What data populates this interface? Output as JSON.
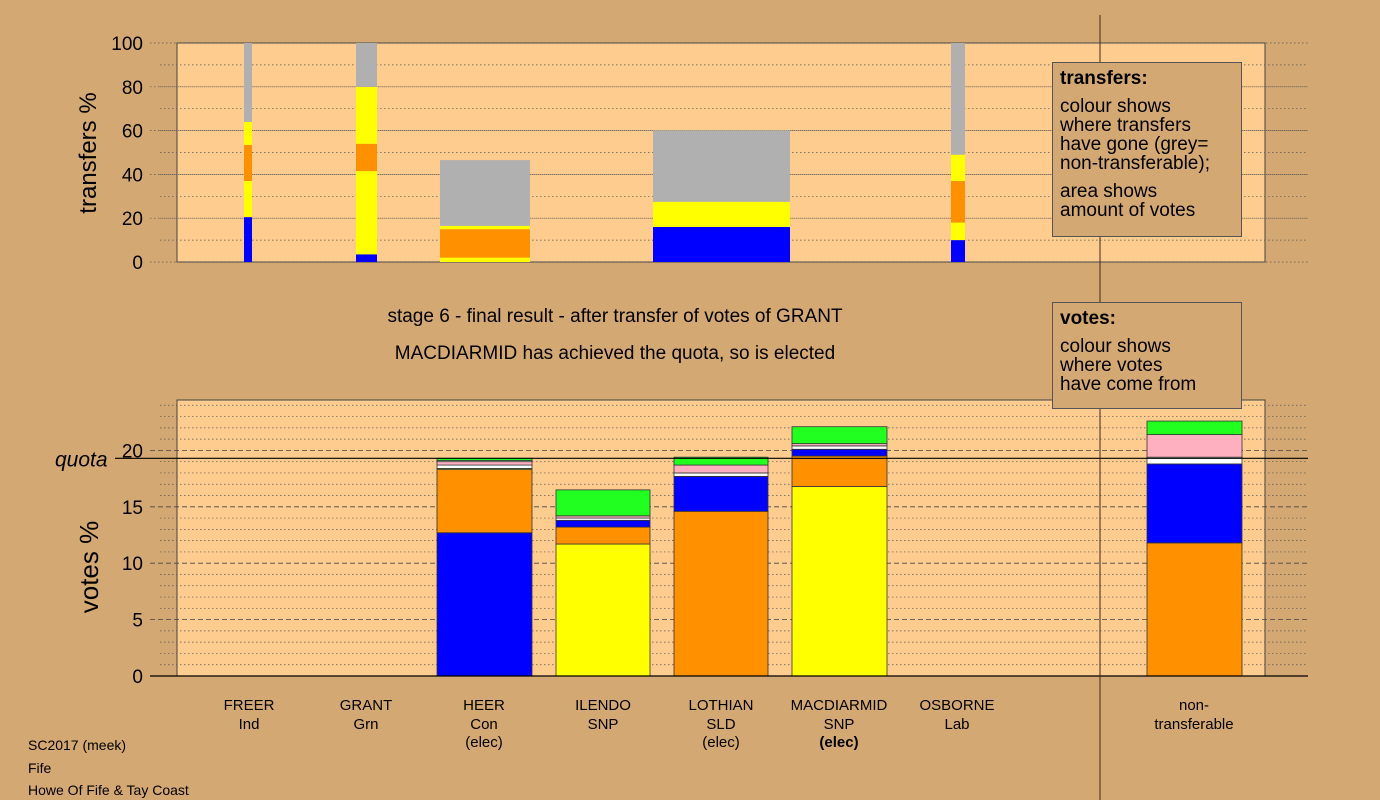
{
  "chart_data": [
    {
      "type": "bar",
      "stacked": true,
      "ylabel": "transfers %",
      "ylim": [
        0,
        100
      ],
      "yticks": [
        0,
        20,
        40,
        60,
        80,
        100
      ],
      "bars": [
        {
          "candidate": "FREER",
          "width": "thin",
          "segments": [
            {
              "color": "#0000ff",
              "value": 20.5
            },
            {
              "color": "#ffff00",
              "value": 16.5
            },
            {
              "color": "#ff9000",
              "value": 16.5
            },
            {
              "color": "#ffff00",
              "value": 10.5
            },
            {
              "color": "#b0b0b0",
              "value": 36
            }
          ]
        },
        {
          "candidate": "GRANT",
          "width": "narrow",
          "segments": [
            {
              "color": "#0000ff",
              "value": 3.5
            },
            {
              "color": "#ffff00",
              "value": 38
            },
            {
              "color": "#ff9000",
              "value": 12.5
            },
            {
              "color": "#ffff00",
              "value": 26
            },
            {
              "color": "#b0b0b0",
              "value": 20
            }
          ]
        },
        {
          "candidate": "HEER",
          "width": "wide",
          "segments": [
            {
              "color": "#ffff00",
              "value": 2
            },
            {
              "color": "#ff9000",
              "value": 13
            },
            {
              "color": "#ffff00",
              "value": 1.5
            },
            {
              "color": "#b0b0b0",
              "value": 30
            }
          ]
        },
        {
          "candidate": "LOTHIAN",
          "width": "wider",
          "segments": [
            {
              "color": "#0000ff",
              "value": 16
            },
            {
              "color": "#ffff00",
              "value": 11.5
            },
            {
              "color": "#b0b0b0",
              "value": 32.5
            }
          ]
        },
        {
          "candidate": "OSBORNE",
          "width": "thin",
          "segments": [
            {
              "color": "#0000ff",
              "value": 10
            },
            {
              "color": "#ffff00",
              "value": 8
            },
            {
              "color": "#ff9000",
              "value": 19
            },
            {
              "color": "#ffff00",
              "value": 12
            },
            {
              "color": "#b0b0b0",
              "value": 51
            }
          ]
        }
      ]
    },
    {
      "type": "bar",
      "stacked": true,
      "ylabel": "votes %",
      "ylim": [
        0,
        25
      ],
      "yticks": [
        0,
        5,
        10,
        15,
        20
      ],
      "quota": 19.3,
      "quota_label": "quota",
      "candidates": [
        {
          "name": "FREER",
          "party": "Ind",
          "status": "",
          "segments": []
        },
        {
          "name": "GRANT",
          "party": "Grn",
          "status": "",
          "segments": []
        },
        {
          "name": "HEER",
          "party": "Con",
          "status": "(elec)",
          "segments": [
            {
              "color": "#0000ff",
              "value": 12.7
            },
            {
              "color": "#ff9000",
              "value": 5.6
            },
            {
              "color": "#ffff00",
              "value": 0.1
            },
            {
              "color": "#ffffff",
              "value": 0.3
            },
            {
              "color": "#ffb0c0",
              "value": 0.3
            },
            {
              "color": "#ffffff",
              "value": 0.1
            },
            {
              "color": "#20ff20",
              "value": 0.2
            }
          ]
        },
        {
          "name": "ILENDO",
          "party": "SNP",
          "status": "",
          "segments": [
            {
              "color": "#ffff00",
              "value": 11.7
            },
            {
              "color": "#ff9000",
              "value": 1.5
            },
            {
              "color": "#0000ff",
              "value": 0.6
            },
            {
              "color": "#ffffff",
              "value": 0.2
            },
            {
              "color": "#ffb0c0",
              "value": 0.2
            },
            {
              "color": "#20ff20",
              "value": 2.3
            }
          ]
        },
        {
          "name": "LOTHIAN",
          "party": "SLD",
          "status": "(elec)",
          "segments": [
            {
              "color": "#ff9000",
              "value": 14.6
            },
            {
              "color": "#0000ff",
              "value": 3.1
            },
            {
              "color": "#ffffff",
              "value": 0.3
            },
            {
              "color": "#ffb0c0",
              "value": 0.7
            },
            {
              "color": "#20ff20",
              "value": 0.7
            }
          ]
        },
        {
          "name": "MACDIARMID",
          "party": "SNP",
          "status": "(elec)",
          "status_bold": true,
          "segments": [
            {
              "color": "#ffff00",
              "value": 16.8
            },
            {
              "color": "#ff9000",
              "value": 2.7
            },
            {
              "color": "#0000ff",
              "value": 0.6
            },
            {
              "color": "#ffffff",
              "value": 0.3
            },
            {
              "color": "#ffb0c0",
              "value": 0.2
            },
            {
              "color": "#20ff20",
              "value": 1.5
            }
          ]
        },
        {
          "name": "OSBORNE",
          "party": "Lab",
          "status": "",
          "segments": []
        },
        {
          "name": "non-",
          "party": "transferable",
          "status": "",
          "segments": [
            {
              "color": "#ff9000",
              "value": 11.8
            },
            {
              "color": "#0000ff",
              "value": 7.0
            },
            {
              "color": "#ffffff",
              "value": 0.6
            },
            {
              "color": "#ffb0c0",
              "value": 2.0
            },
            {
              "color": "#20ff20",
              "value": 1.2
            }
          ]
        }
      ]
    }
  ],
  "captions": {
    "stage": "stage 6 - final result - after transfer of votes of GRANT",
    "result": "MACDIARMID has achieved the quota, so is elected"
  },
  "legend_transfers": {
    "title": "transfers:",
    "lines1": [
      "colour shows",
      "where transfers",
      "have gone (grey=",
      "non-transferable);"
    ],
    "lines2": [
      "area shows",
      "amount of votes"
    ]
  },
  "legend_votes": {
    "title": "votes:",
    "lines": [
      "colour shows",
      "where votes",
      "have come from"
    ]
  },
  "footer": {
    "line1": "SC2017 (meek)",
    "line2": "Fife",
    "line3": "Howe Of Fife & Tay Coast"
  },
  "colors": {
    "background": "#d4a873",
    "plot_area": "#ffcc90"
  }
}
